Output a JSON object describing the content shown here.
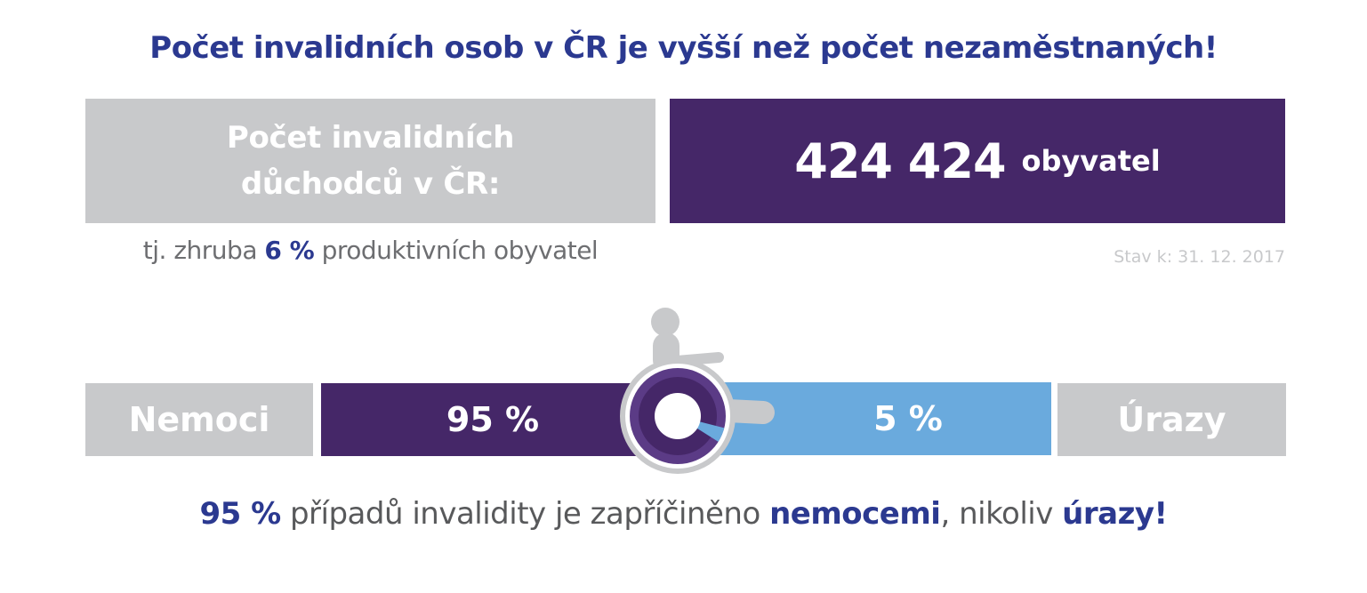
{
  "headline": "Počet invalidních osob v ČR je vyšší než počet nezaměstnaných!",
  "summary": {
    "label": "Počet invalidních důchodců v ČR:",
    "value_number": "424 424",
    "value_unit": "obyvatel",
    "share_prefix": "tj. zhruba",
    "share_value": "6 %",
    "share_suffix": "produktivních obyvatel",
    "date": "Stav k: 31. 12. 2017"
  },
  "causes": {
    "left_label": "Nemoci",
    "left_value": "95 %",
    "right_value": "5 %",
    "right_label": "Úrazy",
    "left_share": 0.95,
    "right_share": 0.05
  },
  "conclusion": {
    "part1": "95 %",
    "part2": "případů invalidity je zapříčiněno",
    "part3": "nemocemi",
    "part4": ", nikoliv",
    "part5": "úrazy!"
  },
  "colors": {
    "heading_blue": "#2b3990",
    "purple": "#452768",
    "light_blue": "#6aaadd",
    "gray": "#c8c9cb",
    "text_gray": "#6d6e71"
  },
  "icon": "wheelchair-icon"
}
